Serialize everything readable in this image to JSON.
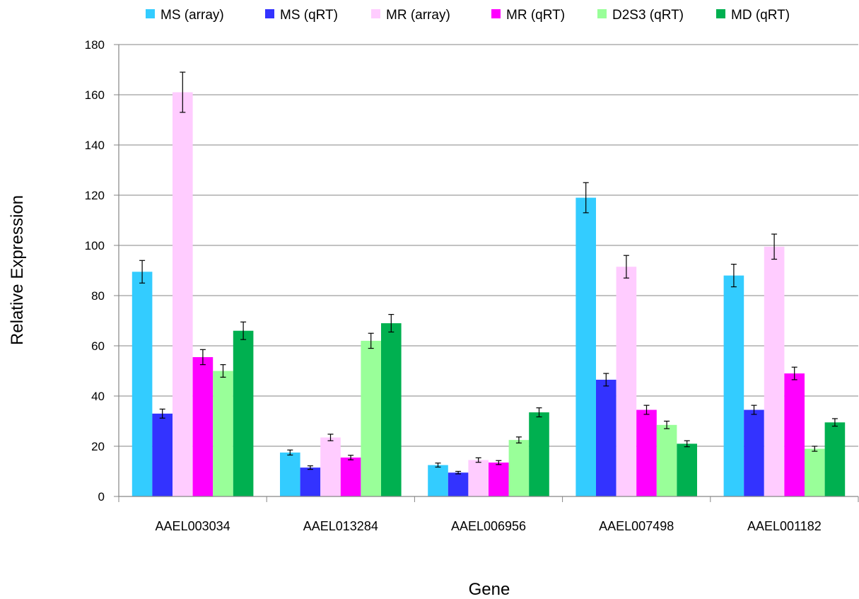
{
  "chart_data": {
    "type": "bar",
    "title": "",
    "xlabel": "Gene",
    "ylabel": "Relative Expression",
    "ylim": [
      0,
      180
    ],
    "yticks": [
      0,
      20,
      40,
      60,
      80,
      100,
      120,
      140,
      160,
      180
    ],
    "grid": true,
    "legend_position": "top",
    "categories": [
      "AAEL003034",
      "AAEL013284",
      "AAEL006956",
      "AAEL007498",
      "AAEL001182"
    ],
    "series": [
      {
        "name": "MS (array)",
        "color": "#33CCFF",
        "values": [
          89.5,
          17.5,
          12.5,
          119,
          88
        ],
        "errors": [
          4.5,
          1.0,
          0.8,
          6,
          4.5
        ]
      },
      {
        "name": "MS (qRT)",
        "color": "#3333FF",
        "values": [
          33,
          11.5,
          9.5,
          46.5,
          34.5
        ],
        "errors": [
          1.8,
          0.7,
          0.5,
          2.5,
          1.8
        ]
      },
      {
        "name": "MR (array)",
        "color": "#FFCCFF",
        "values": [
          161,
          23.5,
          14.5,
          91.5,
          99.5
        ],
        "errors": [
          8,
          1.3,
          0.9,
          4.5,
          5
        ]
      },
      {
        "name": "MR (qRT)",
        "color": "#FF00FF",
        "values": [
          55.5,
          15.5,
          13.5,
          34.5,
          49
        ],
        "errors": [
          3,
          0.9,
          0.8,
          1.8,
          2.5
        ]
      },
      {
        "name": "D2S3 (qRT)",
        "color": "#99FF99",
        "values": [
          50,
          62,
          22.5,
          28.5,
          19
        ],
        "errors": [
          2.5,
          3,
          1.2,
          1.5,
          1.0
        ]
      },
      {
        "name": "MD (qRT)",
        "color": "#00B050",
        "values": [
          66,
          69,
          33.5,
          21,
          29.5
        ],
        "errors": [
          3.5,
          3.5,
          1.8,
          1.2,
          1.5
        ]
      }
    ]
  }
}
